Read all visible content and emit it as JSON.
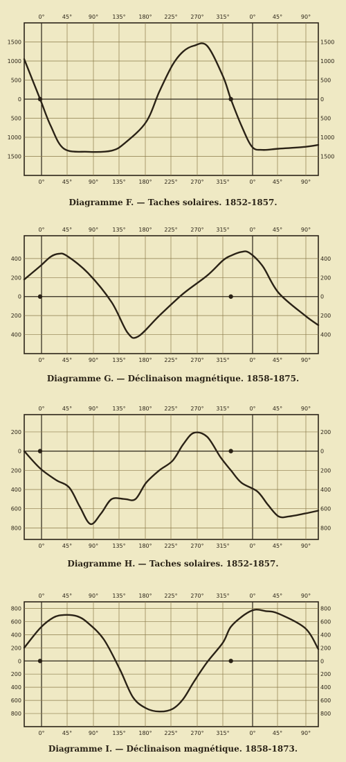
{
  "colors": {
    "background": "#efe9c4",
    "ink": "#2b2418",
    "grid": "#8a7a4a",
    "curve": "#2a2216"
  },
  "chart_data": [
    {
      "type": "line",
      "title": "Diagramme F. — Taches solaires. 1852-1857.",
      "x_tick_labels": [
        "0°",
        "45°",
        "90°",
        "135°",
        "180°",
        "225°",
        "270°",
        "315°",
        "0°",
        "45°",
        "90°"
      ],
      "y_tick_labels": [
        "1500",
        "1000",
        "500",
        "0",
        "500",
        "1000",
        "1500"
      ],
      "y_tick_values": [
        1500,
        1000,
        500,
        0,
        -500,
        -1000,
        -1500
      ],
      "xlim": [
        -30,
        525
      ],
      "ylim": [
        -2000,
        2000
      ],
      "grid": true,
      "x": [
        -30,
        0,
        20,
        45,
        90,
        135,
        160,
        200,
        225,
        250,
        270,
        290,
        315,
        345,
        360,
        380,
        400,
        420,
        450,
        500,
        525
      ],
      "y": [
        1050,
        0,
        -700,
        -1300,
        -1380,
        -1350,
        -1150,
        -600,
        200,
        900,
        1250,
        1400,
        1400,
        600,
        0,
        -700,
        -1250,
        -1330,
        -1300,
        -1250,
        -1200
      ]
    },
    {
      "type": "line",
      "title": "Diagramme G. — Déclinaison magnétique. 1858-1875.",
      "x_tick_labels": [
        "0°",
        "45°",
        "90°",
        "135°",
        "180°",
        "225°",
        "270°",
        "315°",
        "0°",
        "45°",
        "90°"
      ],
      "y_tick_labels": [
        "400",
        "200",
        "0",
        "200",
        "400"
      ],
      "y_tick_values": [
        400,
        200,
        0,
        -200,
        -400
      ],
      "xlim": [
        -30,
        525
      ],
      "ylim": [
        -600,
        640
      ],
      "grid": true,
      "x": [
        -30,
        0,
        20,
        35,
        50,
        90,
        135,
        165,
        185,
        225,
        270,
        315,
        345,
        360,
        380,
        395,
        420,
        450,
        500,
        525
      ],
      "y": [
        180,
        320,
        420,
        450,
        430,
        250,
        -60,
        -380,
        -420,
        -200,
        30,
        220,
        380,
        430,
        470,
        460,
        320,
        40,
        -200,
        -300
      ],
      "markers_at_zero": [
        0,
        360
      ]
    },
    {
      "type": "line",
      "title": "Diagramme H. — Taches solaires. 1852-1857.",
      "x_tick_labels": [
        "0°",
        "45°",
        "90°",
        "135°",
        "180°",
        "225°",
        "270°",
        "315°",
        "0°",
        "45°",
        "90°"
      ],
      "y_tick_labels": [
        "200",
        "0",
        "200",
        "400",
        "600",
        "800"
      ],
      "y_tick_values": [
        200,
        0,
        -200,
        -400,
        -600,
        -800
      ],
      "xlim": [
        -30,
        525
      ],
      "ylim": [
        -920,
        380
      ],
      "grid": true,
      "x": [
        -30,
        0,
        30,
        55,
        75,
        95,
        115,
        135,
        160,
        180,
        200,
        225,
        250,
        270,
        290,
        315,
        340,
        360,
        380,
        410,
        430,
        450,
        470,
        500,
        525
      ],
      "y": [
        0,
        -180,
        -300,
        -380,
        -580,
        -760,
        -650,
        -500,
        -500,
        -500,
        -330,
        -200,
        -100,
        70,
        190,
        150,
        -60,
        -200,
        -330,
        -420,
        -560,
        -680,
        -680,
        -650,
        -620
      ],
      "markers_at_zero": [
        0,
        360
      ]
    },
    {
      "type": "line",
      "title": "Diagramme I. — Déclinaison magnétique. 1858-1873.",
      "x_tick_labels": [
        "0°",
        "45°",
        "90°",
        "135°",
        "180°",
        "225°",
        "270°",
        "315°",
        "0°",
        "45°",
        "90°"
      ],
      "y_tick_labels": [
        "800",
        "600",
        "400",
        "200",
        "0",
        "200",
        "400",
        "600",
        "800"
      ],
      "y_tick_values": [
        800,
        600,
        400,
        200,
        0,
        -200,
        -400,
        -600,
        -800
      ],
      "xlim": [
        -30,
        525
      ],
      "ylim": [
        -1000,
        900
      ],
      "grid": true,
      "x": [
        -30,
        0,
        25,
        45,
        70,
        90,
        120,
        150,
        175,
        200,
        225,
        250,
        270,
        290,
        315,
        345,
        360,
        385,
        405,
        425,
        450,
        500,
        525
      ],
      "y": [
        200,
        500,
        660,
        700,
        680,
        580,
        330,
        -120,
        -550,
        -720,
        -770,
        -730,
        -580,
        -320,
        -20,
        280,
        520,
        700,
        780,
        760,
        720,
        500,
        180
      ],
      "markers_at_zero": [
        0,
        360
      ]
    }
  ]
}
